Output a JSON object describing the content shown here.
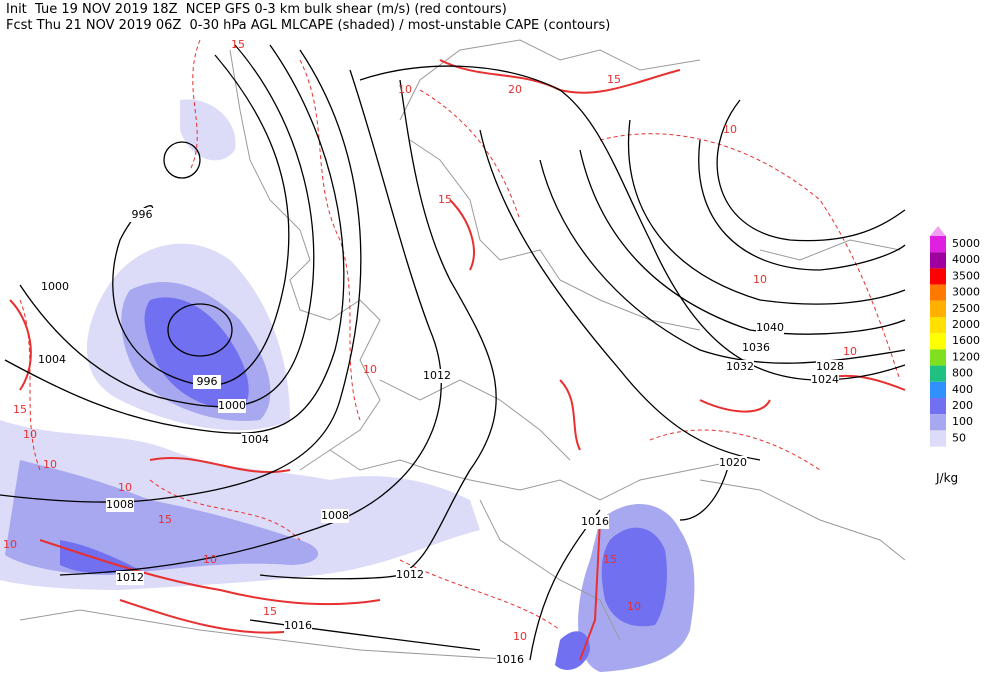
{
  "header": {
    "line1": "Init  Tue 19 NOV 2019 18Z  NCEP GFS 0-3 km bulk shear (m/s) (red contours)",
    "line2": "Fcst Thu 21 NOV 2019 06Z  0-30 hPa AGL MLCAPE (shaded) / most-unstable CAPE (contours)"
  },
  "legend": {
    "top_color": "#f0a0f0",
    "items": [
      {
        "label": "5000",
        "color": "#e020e0"
      },
      {
        "label": "4000",
        "color": "#a000a0"
      },
      {
        "label": "3500",
        "color": "#ff0000"
      },
      {
        "label": "3000",
        "color": "#ff7800"
      },
      {
        "label": "2500",
        "color": "#ffb000"
      },
      {
        "label": "2000",
        "color": "#ffe000"
      },
      {
        "label": "1600",
        "color": "#ffff00"
      },
      {
        "label": "1200",
        "color": "#80e020"
      },
      {
        "label": "800",
        "color": "#20c080"
      },
      {
        "label": "400",
        "color": "#3090ff"
      },
      {
        "label": "200",
        "color": "#7070f0"
      },
      {
        "label": "100",
        "color": "#a8a8f0"
      },
      {
        "label": "50",
        "color": "#dcdcf8"
      }
    ],
    "unit": "J/kg"
  },
  "isobar_labels": [
    "996",
    "1000",
    "1004",
    "996",
    "1000",
    "1004",
    "1008",
    "1008",
    "1012",
    "1012",
    "1012",
    "1016",
    "1016",
    "1016",
    "1020",
    "1024",
    "1028",
    "1032",
    "1036",
    "1040"
  ],
  "shear_labels": [
    "15",
    "10",
    "20",
    "15",
    "10",
    "10",
    "15",
    "10",
    "10",
    "15",
    "10",
    "10",
    "10",
    "15",
    "10",
    "15",
    "10",
    "10",
    "15",
    "10"
  ]
}
